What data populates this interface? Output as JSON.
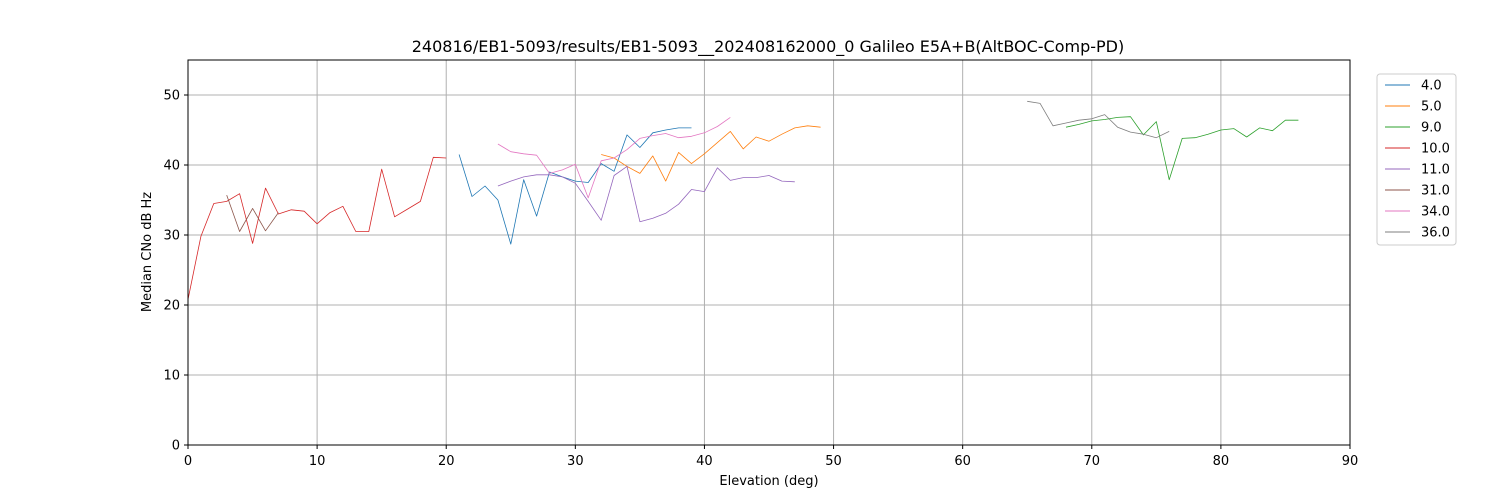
{
  "chart_data": {
    "type": "line",
    "title": "240816/EB1-5093/results/EB1-5093__202408162000_0 Galileo E5A+B(AltBOC-Comp-PD)",
    "xlabel": "Elevation (deg)",
    "ylabel": "Median CNo dB Hz",
    "xlim": [
      0,
      90
    ],
    "ylim": [
      0,
      55
    ],
    "xticks": [
      0,
      10,
      20,
      30,
      40,
      50,
      60,
      70,
      80,
      90
    ],
    "yticks": [
      0,
      10,
      20,
      30,
      40,
      50
    ],
    "grid": true,
    "legend_position": "outside-right-top",
    "series": [
      {
        "name": "4.0",
        "color": "#1f77b4",
        "x": [
          21,
          22,
          23,
          24,
          25,
          26,
          27,
          28,
          29,
          30,
          31,
          32,
          33,
          34,
          35,
          36,
          37,
          38,
          39
        ],
        "y": [
          41.5,
          35.5,
          37.0,
          35.0,
          28.7,
          37.9,
          32.7,
          39.0,
          38.3,
          37.7,
          37.5,
          40.2,
          39.1,
          44.3,
          42.5,
          44.6,
          45.0,
          45.3,
          45.3
        ]
      },
      {
        "name": "5.0",
        "color": "#ff7f0e",
        "x": [
          32,
          33,
          34,
          35,
          36,
          37,
          38,
          39,
          40,
          41,
          42,
          43,
          44,
          45,
          46,
          47,
          48,
          49
        ],
        "y": [
          41.5,
          41.0,
          39.8,
          38.8,
          41.3,
          37.7,
          41.8,
          40.2,
          41.6,
          43.2,
          44.8,
          42.3,
          44.0,
          43.4,
          44.4,
          45.3,
          45.6,
          45.4
        ]
      },
      {
        "name": "9.0",
        "color": "#2ca02c",
        "x": [
          68,
          69,
          70,
          71,
          72,
          73,
          74,
          75,
          76,
          77,
          78,
          79,
          80,
          81,
          82,
          83,
          84,
          85,
          86
        ],
        "y": [
          45.4,
          45.8,
          46.3,
          46.5,
          46.8,
          46.9,
          44.3,
          46.2,
          37.9,
          43.8,
          43.9,
          44.4,
          45.0,
          45.2,
          44.0,
          45.3,
          44.9,
          46.4,
          46.4
        ]
      },
      {
        "name": "10.0",
        "color": "#d62728",
        "x": [
          0,
          1,
          2,
          3,
          4,
          5,
          6,
          7,
          8,
          9,
          10,
          11,
          12,
          13,
          14,
          15,
          16,
          17,
          18,
          19,
          20
        ],
        "y": [
          20.8,
          29.8,
          34.5,
          34.8,
          35.9,
          28.8,
          36.7,
          33.0,
          33.6,
          33.4,
          31.6,
          33.2,
          34.1,
          30.5,
          30.5,
          39.4,
          32.6,
          33.7,
          34.8,
          41.1,
          41.0
        ]
      },
      {
        "name": "11.0",
        "color": "#9467bd",
        "x": [
          24,
          25,
          26,
          27,
          28,
          29,
          30,
          31,
          32,
          33,
          34,
          35,
          36,
          37,
          38,
          39,
          40,
          41,
          42,
          43,
          44,
          45,
          46,
          47
        ],
        "y": [
          37.0,
          37.7,
          38.3,
          38.6,
          38.6,
          38.3,
          37.4,
          34.8,
          32.1,
          38.5,
          39.8,
          31.9,
          32.4,
          33.1,
          34.4,
          36.5,
          36.2,
          39.6,
          37.8,
          38.2,
          38.2,
          38.5,
          37.7,
          37.6
        ]
      },
      {
        "name": "31.0",
        "color": "#8c564b",
        "x": [
          3,
          4,
          5,
          6,
          7
        ],
        "y": [
          35.7,
          30.5,
          33.8,
          30.6,
          33.2
        ]
      },
      {
        "name": "34.0",
        "color": "#e377c2",
        "x": [
          24,
          25,
          26,
          27,
          28,
          29,
          30,
          31,
          32,
          33,
          34,
          35,
          36,
          37,
          38,
          39,
          40,
          41,
          42
        ],
        "y": [
          43.0,
          41.9,
          41.6,
          41.4,
          38.8,
          39.3,
          40.1,
          35.3,
          40.6,
          41.0,
          42.2,
          43.8,
          44.2,
          44.5,
          43.9,
          44.1,
          44.6,
          45.5,
          46.8
        ]
      },
      {
        "name": "36.0",
        "color": "#7f7f7f",
        "x": [
          65,
          66,
          67,
          68,
          69,
          70,
          71,
          72,
          73,
          74,
          75,
          76
        ],
        "y": [
          49.1,
          48.8,
          45.6,
          46.0,
          46.4,
          46.6,
          47.2,
          45.4,
          44.7,
          44.4,
          43.9,
          44.8
        ]
      }
    ]
  }
}
